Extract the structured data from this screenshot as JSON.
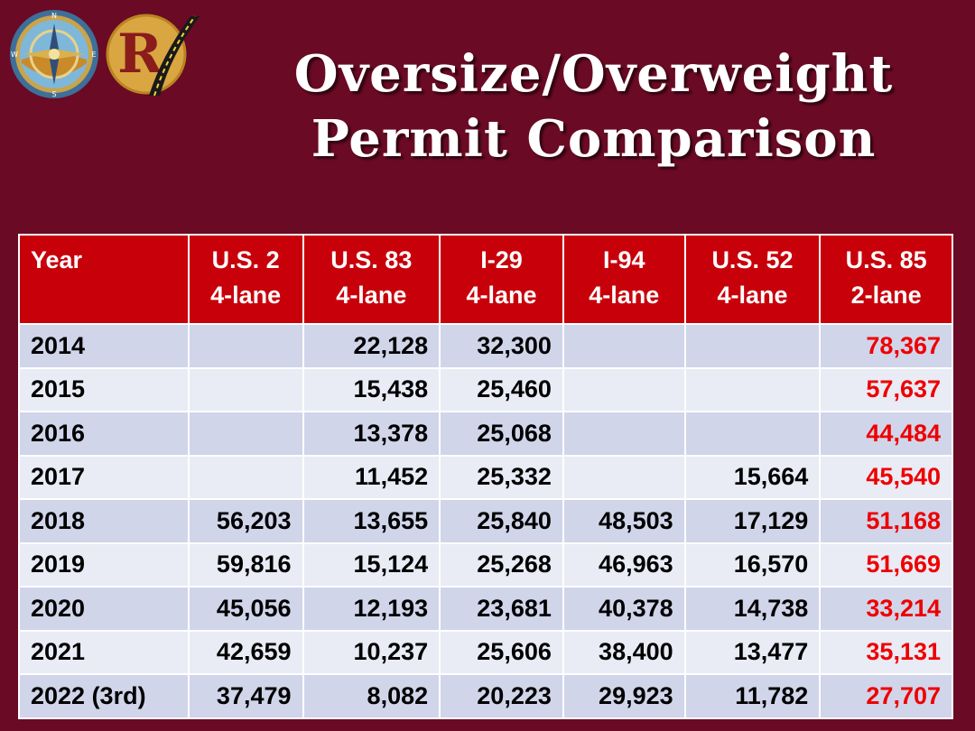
{
  "header": {
    "title_line1": "Oversize/Overweight",
    "title_line2": "Permit Comparison",
    "logos": [
      {
        "name": "compass-logo",
        "letters": [
          "N",
          "E",
          "S",
          "W"
        ]
      },
      {
        "name": "road-logo",
        "letter": "R"
      }
    ]
  },
  "table": {
    "headers": [
      {
        "line1": "Year",
        "line2": ""
      },
      {
        "line1": "U.S. 2",
        "line2": "4-lane"
      },
      {
        "line1": "U.S. 83",
        "line2": "4-lane"
      },
      {
        "line1": "I-29",
        "line2": "4-lane"
      },
      {
        "line1": "I-94",
        "line2": "4-lane"
      },
      {
        "line1": "U.S. 52",
        "line2": "4-lane"
      },
      {
        "line1": "U.S. 85",
        "line2": "2-lane"
      }
    ],
    "rows": [
      [
        "2014",
        "",
        "22,128",
        "32,300",
        "",
        "",
        "78,367"
      ],
      [
        "2015",
        "",
        "15,438",
        "25,460",
        "",
        "",
        "57,637"
      ],
      [
        "2016",
        "",
        "13,378",
        "25,068",
        "",
        "",
        "44,484"
      ],
      [
        "2017",
        "",
        "11,452",
        "25,332",
        "",
        "15,664",
        "45,540"
      ],
      [
        "2018",
        "56,203",
        "13,655",
        "25,840",
        "48,503",
        "17,129",
        "51,168"
      ],
      [
        "2019",
        "59,816",
        "15,124",
        "25,268",
        "46,963",
        "16,570",
        "51,669"
      ],
      [
        "2020",
        "45,056",
        "12,193",
        "23,681",
        "40,378",
        "14,738",
        "33,214"
      ],
      [
        "2021",
        "42,659",
        "10,237",
        "25,606",
        "38,400",
        "13,477",
        "35,131"
      ],
      [
        "2022 (3rd)",
        "37,479",
        "8,082",
        "20,223",
        "29,923",
        "11,782",
        "27,707"
      ]
    ]
  },
  "colors": {
    "background": "#6a0a24",
    "header_bg": "#c8000a",
    "row_dark": "#d0d5ea",
    "row_light": "#e9ebf5",
    "highlight_text": "#ee0000"
  }
}
